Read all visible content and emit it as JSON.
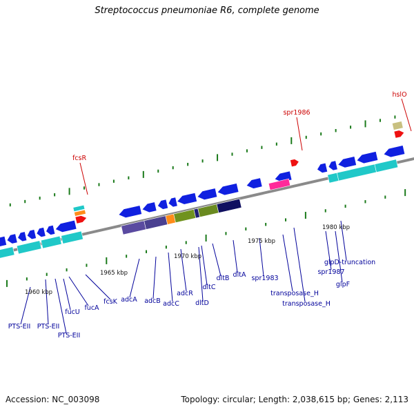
{
  "title": "Streptococcus pneumoniae R6, complete genome",
  "footer": {
    "accession": "Accession: NC_003098",
    "topology": "Topology: circular; Length: 2,038,615 bp; Genes: 2,113"
  },
  "colors": {
    "backbone": "#8a8a8a",
    "tick": "#1a7a1a",
    "blue_gene": "#1020e0",
    "cyan_gene": "#20c8c8",
    "gene_label": "#00009a",
    "rna_label": "#cc0000",
    "rna_feature": "#ee1111"
  },
  "scale_labels": [
    {
      "text": "1960 kbp"
    },
    {
      "text": "1965 kbp"
    },
    {
      "text": "1970 kbp"
    },
    {
      "text": "1975 kbp"
    },
    {
      "text": "1980 kbp"
    }
  ],
  "top_labels": [
    {
      "text": "fcsR"
    },
    {
      "text": "spr1986"
    },
    {
      "text": "hslO"
    }
  ],
  "bottom_labels": [
    {
      "text": "PTS-EII"
    },
    {
      "text": "PTS-EII"
    },
    {
      "text": "PTS-EII"
    },
    {
      "text": "fucU"
    },
    {
      "text": "fucA"
    },
    {
      "text": "fcsK"
    },
    {
      "text": "adcA"
    },
    {
      "text": "adcB"
    },
    {
      "text": "adcC"
    },
    {
      "text": "adcR"
    },
    {
      "text": "dltD"
    },
    {
      "text": "dltC"
    },
    {
      "text": "dltB"
    },
    {
      "text": "dltA"
    },
    {
      "text": "spr1983"
    },
    {
      "text": "transposase_H"
    },
    {
      "text": "transposase_H"
    },
    {
      "text": "spr1987"
    },
    {
      "text": "glpF"
    },
    {
      "text": "glpD-truncation"
    }
  ]
}
